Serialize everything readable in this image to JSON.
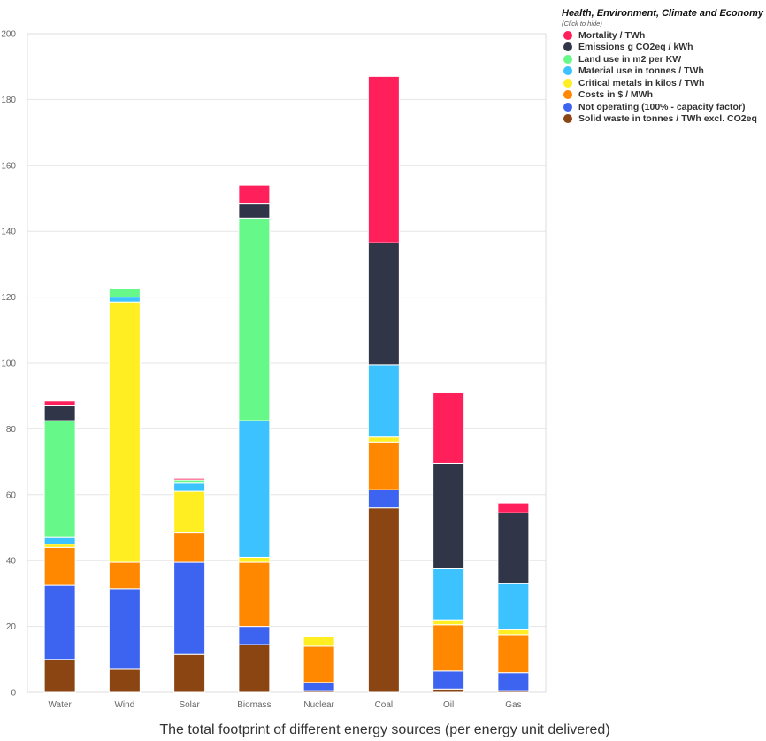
{
  "chart_data": {
    "type": "bar",
    "stacked": true,
    "title": "",
    "xlabel": "The total footprint of different energy sources (per energy unit delivered)",
    "ylabel": "",
    "ylim": [
      0,
      200
    ],
    "yticks": [
      0,
      20,
      40,
      60,
      80,
      100,
      120,
      140,
      160,
      180,
      200
    ],
    "categories": [
      "Water",
      "Wind",
      "Solar",
      "Biomass",
      "Nuclear",
      "Coal",
      "Oil",
      "Gas"
    ],
    "series": [
      {
        "name": "Solid waste in tonnes / TWh excl. CO2eq",
        "color": "#8B4513",
        "values": [
          10,
          7,
          11.5,
          14.5,
          0.5,
          56,
          1,
          0.5
        ]
      },
      {
        "name": "Not operating (100% - capacity factor)",
        "color": "#3D64F0",
        "values": [
          22.5,
          24.5,
          28,
          5.5,
          2.5,
          5.5,
          5.5,
          5.5
        ]
      },
      {
        "name": "Costs in $ / MWh",
        "color": "#FF8800",
        "values": [
          11.5,
          8,
          9,
          19.5,
          11,
          14.5,
          14,
          11.5
        ]
      },
      {
        "name": "Critical metals in kilos / TWh",
        "color": "#FFEE22",
        "values": [
          1,
          79,
          12.5,
          1.5,
          3,
          1.5,
          1.5,
          1.5
        ]
      },
      {
        "name": "Material use in tonnes / TWh",
        "color": "#3CC3FF",
        "values": [
          2,
          1.5,
          2.5,
          41.5,
          0,
          22,
          15.5,
          14
        ]
      },
      {
        "name": "Land use in m2 per KW",
        "color": "#66F888",
        "values": [
          35.5,
          2.5,
          1,
          61.5,
          0,
          0,
          0,
          0
        ]
      },
      {
        "name": "Emissions g CO2eq / kWh",
        "color": "#313548",
        "values": [
          4.5,
          0,
          0,
          4.5,
          0,
          37,
          32,
          21.5
        ]
      },
      {
        "name": "Mortality / TWh",
        "color": "#FF1F5B",
        "values": [
          1.5,
          0,
          0.5,
          5.5,
          0,
          50.5,
          21.5,
          3
        ]
      }
    ],
    "legend": {
      "title": "Health, Environment, Climate and Economy",
      "hint": "(Click to hide)",
      "position": "top-right"
    },
    "grid": true
  }
}
